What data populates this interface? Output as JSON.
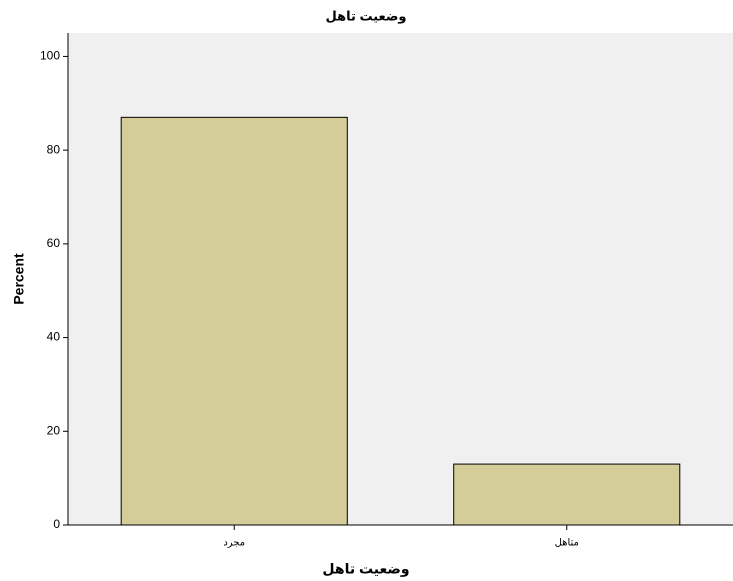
{
  "chart_data": {
    "type": "bar",
    "title": "وضعیت تاهل",
    "x_label": "وضعیت تاهل",
    "y_label": "Percent",
    "categories": [
      "مجرد",
      "متاهل"
    ],
    "values": [
      87,
      13
    ],
    "color": "#d4cd99",
    "ylim": [
      0,
      105
    ],
    "yticks": [
      0,
      20,
      40,
      60,
      80,
      100
    ]
  }
}
